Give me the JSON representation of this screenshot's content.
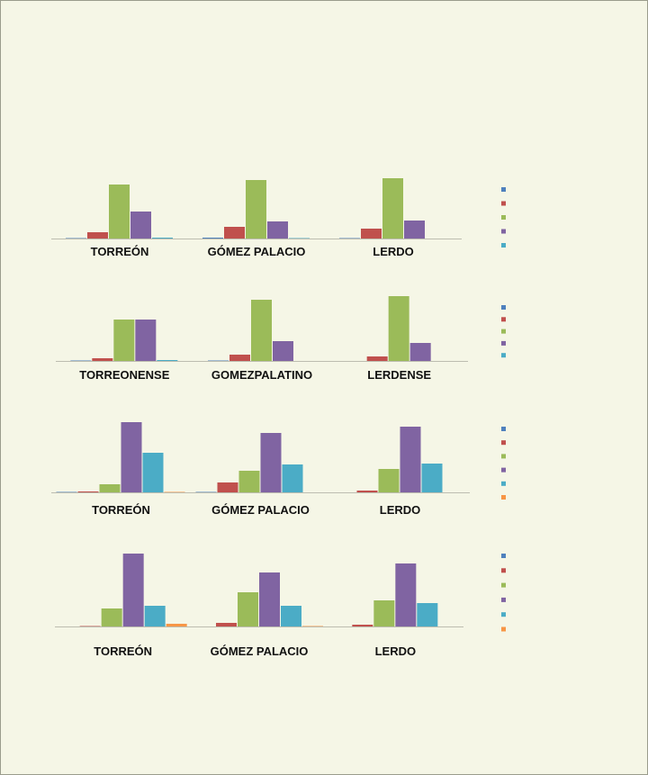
{
  "colors": {
    "s1": "#4f81bd",
    "s2": "#c0504d",
    "s3": "#9bbb59",
    "s4": "#8064a2",
    "s5": "#4bacc6",
    "s6": "#f79646"
  },
  "chart_data": [
    {
      "type": "bar",
      "title": "",
      "ylim": [
        0,
        100
      ],
      "categories": [
        "TORREÓN",
        "GÓMEZ PALACIO",
        "LERDO"
      ],
      "series": [
        {
          "name": "",
          "values": [
            0.5,
            1,
            0.5
          ]
        },
        {
          "name": "",
          "values": [
            7,
            13,
            11
          ]
        },
        {
          "name": "",
          "values": [
            60,
            65,
            67
          ]
        },
        {
          "name": "",
          "values": [
            30,
            19,
            20
          ]
        },
        {
          "name": "",
          "values": [
            1,
            0.5,
            0
          ]
        }
      ]
    },
    {
      "type": "bar",
      "title": "",
      "ylim": [
        0,
        100
      ],
      "categories": [
        "TORREONENSE",
        "GOMEZPALATINO",
        "LERDENSE"
      ],
      "series": [
        {
          "name": "",
          "values": [
            0.5,
            0.5,
            0
          ]
        },
        {
          "name": "",
          "values": [
            3,
            7,
            5
          ]
        },
        {
          "name": "",
          "values": [
            46,
            68,
            72
          ]
        },
        {
          "name": "",
          "values": [
            46,
            22,
            20
          ]
        },
        {
          "name": "",
          "values": [
            1,
            0,
            0
          ]
        }
      ]
    },
    {
      "type": "bar",
      "title": "",
      "ylim": [
        0,
        100
      ],
      "categories": [
        "TORREÓN",
        "GÓMEZ PALACIO",
        "LERDO"
      ],
      "series": [
        {
          "name": "",
          "values": [
            0.5,
            0.5,
            0
          ]
        },
        {
          "name": "",
          "values": [
            1,
            11,
            2
          ]
        },
        {
          "name": "",
          "values": [
            9,
            24,
            26
          ]
        },
        {
          "name": "",
          "values": [
            78,
            66,
            73
          ]
        },
        {
          "name": "",
          "values": [
            44,
            31,
            32
          ]
        },
        {
          "name": "",
          "values": [
            0.5,
            0,
            0
          ]
        }
      ]
    },
    {
      "type": "bar",
      "title": "",
      "ylim": [
        0,
        100
      ],
      "categories": [
        "TORREÓN",
        "GÓMEZ PALACIO",
        "LERDO"
      ],
      "series": [
        {
          "name": "",
          "values": [
            0,
            0,
            0
          ]
        },
        {
          "name": "",
          "values": [
            0.5,
            4,
            2
          ]
        },
        {
          "name": "",
          "values": [
            20,
            38,
            29
          ]
        },
        {
          "name": "",
          "values": [
            81,
            60,
            70
          ]
        },
        {
          "name": "",
          "values": [
            23,
            23,
            26
          ]
        },
        {
          "name": "",
          "values": [
            3,
            0.5,
            0
          ]
        }
      ]
    }
  ]
}
